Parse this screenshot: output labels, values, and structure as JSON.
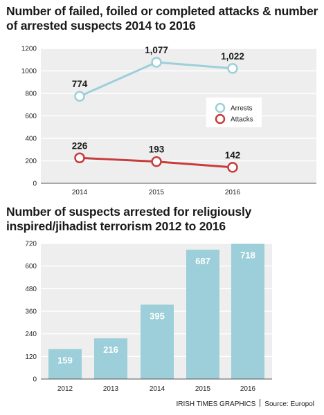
{
  "titles": {
    "chart1": "Number of failed, foiled or completed attacks & number of arrested suspects 2014 to 2016",
    "chart2": "Number of suspects arrested for religiously inspired/jihadist terrorism 2012 to 2016"
  },
  "footer": {
    "credit": "IRISH TIMES GRAPHICS",
    "source": "Source: Europol"
  },
  "colors": {
    "arrests": "#9ccfd9",
    "attacks": "#c73c3c",
    "plot_bg": "#eeeeee",
    "bars": "#9ccfd9"
  },
  "chart_data": [
    {
      "type": "line",
      "title": "Number of failed, foiled or completed attacks & number of arrested suspects 2014 to 2016",
      "categories": [
        "2014",
        "2015",
        "2016"
      ],
      "series": [
        {
          "name": "Arrests",
          "values": [
            774,
            1077,
            1022
          ],
          "labels": [
            "774",
            "1,077",
            "1,022"
          ],
          "color": "#9ccfd9"
        },
        {
          "name": "Attacks",
          "values": [
            226,
            193,
            142
          ],
          "labels": [
            "226",
            "193",
            "142"
          ],
          "color": "#c73c3c"
        }
      ],
      "yticks": [
        0,
        200,
        400,
        600,
        800,
        1000,
        1200
      ],
      "ylim": [
        0,
        1200
      ],
      "grid": true,
      "legend": "right"
    },
    {
      "type": "bar",
      "title": "Number of suspects arrested for religiously inspired/jihadist terrorism 2012 to 2016",
      "categories": [
        "2012",
        "2013",
        "2014",
        "2015",
        "2016"
      ],
      "values": [
        159,
        216,
        395,
        687,
        718
      ],
      "yticks": [
        0,
        120,
        240,
        360,
        480,
        600,
        720
      ],
      "ylim": [
        0,
        720
      ],
      "grid": true
    }
  ]
}
